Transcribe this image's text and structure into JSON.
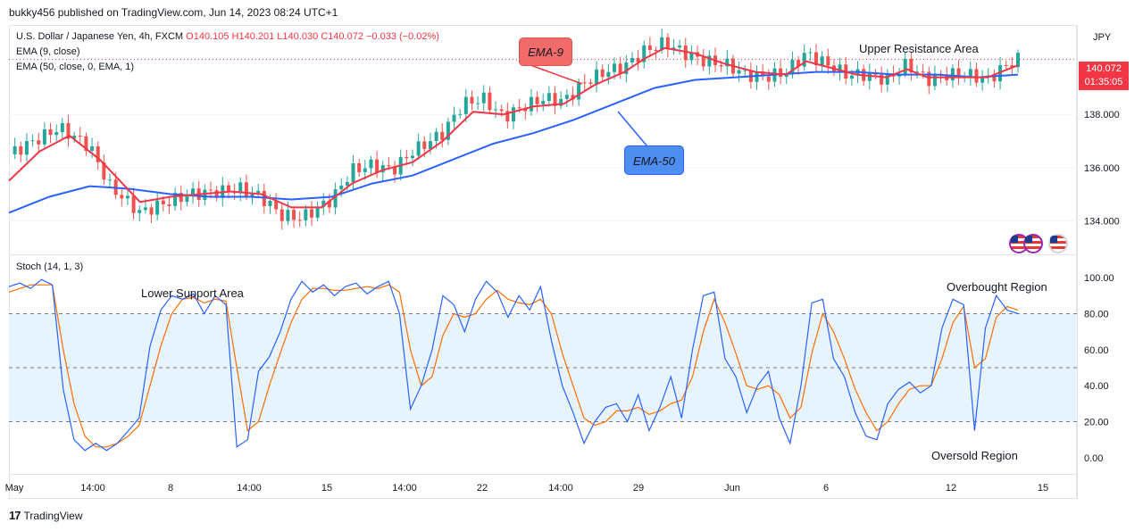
{
  "publish_line": "bukky456 published on TradingView.com, Jun 14, 2023 08:24 UTC+1",
  "footer": {
    "brand": "TradingView"
  },
  "legend": {
    "symbol": "U.S. Dollar / Japanese Yen, 4h, FXCM",
    "ohlc": "O140.105 H140.201 L140.030 C140.072 −0.033 (−0.02%)",
    "ema9": "EMA (9, close)",
    "ema50": "EMA (50, close, 0, EMA, 1)",
    "stoch": "Stoch (14, 1, 3)"
  },
  "price_tag": {
    "price": "140.072",
    "countdown": "01:35:05"
  },
  "currency": "JPY",
  "annotations": {
    "ema9_label": "EMA-9",
    "ema50_label": "EMA-50",
    "upper_resistance": "Upper Resistance Area",
    "lower_support": "Lower Support Area",
    "overbought": "Overbought Region",
    "oversold": "Oversold Region"
  },
  "colors": {
    "up": "#26a69a",
    "down": "#ef5350",
    "ema9": "#f23645",
    "ema50": "#2962ff",
    "k_line": "#2962ff",
    "d_line": "#ff6d00",
    "band_fill": "#e8f4fd",
    "ema9_callout": "#f26b6b",
    "ema50_callout": "#4d8ef0"
  },
  "chart_data": [
    {
      "type": "candlestick",
      "title": "U.S. Dollar / Japanese Yen, 4h, FXCM",
      "y_axis": {
        "ticks": [
          "134.000",
          "136.000",
          "138.000"
        ],
        "range": [
          132.8,
          141.3
        ]
      },
      "x_axis": {
        "ticks": [
          "May",
          "14:00",
          "8",
          "14:00",
          "15",
          "14:00",
          "22",
          "14:00",
          "29",
          "Jun",
          "6",
          "12",
          "15"
        ]
      },
      "price_series": [
        [
          0,
          136.5
        ],
        [
          2,
          136.9
        ],
        [
          5,
          137.5
        ],
        [
          8,
          136.8
        ],
        [
          10,
          135.3
        ],
        [
          13,
          134.3
        ],
        [
          15,
          134.6
        ],
        [
          18,
          135.0
        ],
        [
          21,
          135.1
        ],
        [
          23,
          135.2
        ],
        [
          25,
          134.9
        ],
        [
          27,
          134.2
        ],
        [
          29,
          134.1
        ],
        [
          32,
          134.8
        ],
        [
          34,
          135.9
        ],
        [
          36,
          136.1
        ],
        [
          38,
          135.9
        ],
        [
          40,
          136.6
        ],
        [
          43,
          137.3
        ],
        [
          45,
          138.4
        ],
        [
          47,
          138.6
        ],
        [
          49,
          137.9
        ],
        [
          51,
          138.3
        ],
        [
          53,
          138.6
        ],
        [
          55,
          138.5
        ],
        [
          57,
          139.2
        ],
        [
          59,
          139.6
        ],
        [
          61,
          139.8
        ],
        [
          63,
          140.4
        ],
        [
          65,
          140.7
        ],
        [
          67,
          140.3
        ],
        [
          69,
          140.0
        ],
        [
          71,
          139.9
        ],
        [
          73,
          139.5
        ],
        [
          75,
          139.4
        ],
        [
          77,
          139.6
        ],
        [
          79,
          140.3
        ],
        [
          81,
          139.9
        ],
        [
          83,
          139.5
        ],
        [
          85,
          139.5
        ],
        [
          87,
          139.3
        ],
        [
          89,
          139.9
        ],
        [
          91,
          139.3
        ],
        [
          93,
          139.5
        ],
        [
          95,
          139.5
        ],
        [
          97,
          139.3
        ],
        [
          99,
          139.9
        ],
        [
          100,
          140.07
        ]
      ],
      "ema9_series": [
        [
          0,
          135.5
        ],
        [
          3,
          136.6
        ],
        [
          6,
          137.2
        ],
        [
          9,
          136.3
        ],
        [
          11,
          135.5
        ],
        [
          13,
          134.7
        ],
        [
          16,
          134.9
        ],
        [
          19,
          135.0
        ],
        [
          22,
          135.1
        ],
        [
          25,
          135.0
        ],
        [
          28,
          134.5
        ],
        [
          31,
          134.5
        ],
        [
          34,
          135.4
        ],
        [
          37,
          135.9
        ],
        [
          40,
          136.2
        ],
        [
          43,
          137.0
        ],
        [
          46,
          138.1
        ],
        [
          49,
          138.0
        ],
        [
          52,
          138.3
        ],
        [
          55,
          138.4
        ],
        [
          58,
          139.1
        ],
        [
          61,
          139.6
        ],
        [
          63,
          140.1
        ],
        [
          65,
          140.5
        ],
        [
          68,
          140.3
        ],
        [
          71,
          139.9
        ],
        [
          74,
          139.6
        ],
        [
          77,
          139.5
        ],
        [
          79,
          140.0
        ],
        [
          81,
          139.8
        ],
        [
          84,
          139.5
        ],
        [
          87,
          139.4
        ],
        [
          89,
          139.7
        ],
        [
          91,
          139.4
        ],
        [
          94,
          139.4
        ],
        [
          97,
          139.4
        ],
        [
          99,
          139.7
        ],
        [
          100,
          139.85
        ]
      ],
      "ema50_series": [
        [
          0,
          134.3
        ],
        [
          4,
          134.9
        ],
        [
          8,
          135.3
        ],
        [
          12,
          135.2
        ],
        [
          16,
          135.0
        ],
        [
          20,
          134.9
        ],
        [
          24,
          134.9
        ],
        [
          28,
          134.8
        ],
        [
          32,
          134.9
        ],
        [
          36,
          135.4
        ],
        [
          40,
          135.7
        ],
        [
          44,
          136.3
        ],
        [
          48,
          136.9
        ],
        [
          52,
          137.3
        ],
        [
          56,
          137.8
        ],
        [
          60,
          138.4
        ],
        [
          64,
          139.0
        ],
        [
          68,
          139.3
        ],
        [
          72,
          139.4
        ],
        [
          76,
          139.5
        ],
        [
          80,
          139.6
        ],
        [
          84,
          139.6
        ],
        [
          88,
          139.5
        ],
        [
          92,
          139.5
        ],
        [
          96,
          139.4
        ],
        [
          100,
          139.5
        ]
      ]
    },
    {
      "type": "line",
      "title": "Stoch (14, 1, 3)",
      "y_axis": {
        "ticks": [
          "100.00",
          "80.00",
          "60.00",
          "40.00",
          "20.00",
          "0.00"
        ],
        "range": [
          -8,
          108
        ],
        "band": [
          20,
          80
        ]
      },
      "series": [
        {
          "name": "%K",
          "values": [
            [
              0,
              95
            ],
            [
              1,
              97
            ],
            [
              2,
              94
            ],
            [
              3,
              99
            ],
            [
              4,
              96
            ],
            [
              5,
              38
            ],
            [
              6,
              10
            ],
            [
              7,
              4
            ],
            [
              8,
              8
            ],
            [
              9,
              4
            ],
            [
              10,
              8
            ],
            [
              11,
              15
            ],
            [
              12,
              22
            ],
            [
              13,
              62
            ],
            [
              14,
              82
            ],
            [
              15,
              90
            ],
            [
              16,
              88
            ],
            [
              17,
              91
            ],
            [
              18,
              80
            ],
            [
              19,
              90
            ],
            [
              20,
              85
            ],
            [
              21,
              6
            ],
            [
              22,
              10
            ],
            [
              23,
              48
            ],
            [
              24,
              56
            ],
            [
              25,
              70
            ],
            [
              26,
              88
            ],
            [
              27,
              98
            ],
            [
              28,
              92
            ],
            [
              29,
              96
            ],
            [
              30,
              90
            ],
            [
              31,
              95
            ],
            [
              32,
              97
            ],
            [
              33,
              91
            ],
            [
              34,
              95
            ],
            [
              35,
              98
            ],
            [
              36,
              80
            ],
            [
              37,
              27
            ],
            [
              38,
              40
            ],
            [
              39,
              60
            ],
            [
              40,
              90
            ],
            [
              41,
              85
            ],
            [
              42,
              70
            ],
            [
              43,
              88
            ],
            [
              44,
              98
            ],
            [
              45,
              92
            ],
            [
              46,
              78
            ],
            [
              47,
              90
            ],
            [
              48,
              82
            ],
            [
              49,
              95
            ],
            [
              50,
              65
            ],
            [
              51,
              40
            ],
            [
              52,
              25
            ],
            [
              53,
              8
            ],
            [
              54,
              20
            ],
            [
              55,
              28
            ],
            [
              56,
              30
            ],
            [
              57,
              20
            ],
            [
              58,
              35
            ],
            [
              59,
              15
            ],
            [
              60,
              28
            ],
            [
              61,
              45
            ],
            [
              62,
              22
            ],
            [
              63,
              60
            ],
            [
              64,
              90
            ],
            [
              65,
              92
            ],
            [
              66,
              55
            ],
            [
              67,
              45
            ],
            [
              68,
              25
            ],
            [
              69,
              40
            ],
            [
              70,
              48
            ],
            [
              71,
              22
            ],
            [
              72,
              8
            ],
            [
              73,
              40
            ],
            [
              74,
              86
            ],
            [
              75,
              88
            ],
            [
              76,
              55
            ],
            [
              77,
              45
            ],
            [
              78,
              25
            ],
            [
              79,
              12
            ],
            [
              80,
              10
            ],
            [
              81,
              30
            ],
            [
              82,
              38
            ],
            [
              83,
              42
            ],
            [
              84,
              36
            ],
            [
              85,
              40
            ],
            [
              86,
              72
            ],
            [
              87,
              88
            ],
            [
              88,
              85
            ],
            [
              89,
              15
            ],
            [
              90,
              72
            ],
            [
              91,
              90
            ],
            [
              92,
              82
            ],
            [
              93,
              80
            ]
          ]
        },
        {
          "name": "%D",
          "values": [
            [
              0,
              92
            ],
            [
              2,
              96
            ],
            [
              4,
              96
            ],
            [
              5,
              60
            ],
            [
              6,
              30
            ],
            [
              7,
              12
            ],
            [
              8,
              6
            ],
            [
              9,
              6
            ],
            [
              10,
              8
            ],
            [
              11,
              12
            ],
            [
              12,
              18
            ],
            [
              13,
              40
            ],
            [
              14,
              62
            ],
            [
              15,
              80
            ],
            [
              16,
              88
            ],
            [
              17,
              89
            ],
            [
              18,
              86
            ],
            [
              19,
              88
            ],
            [
              20,
              87
            ],
            [
              21,
              50
            ],
            [
              22,
              15
            ],
            [
              23,
              20
            ],
            [
              24,
              40
            ],
            [
              25,
              58
            ],
            [
              26,
              75
            ],
            [
              27,
              88
            ],
            [
              28,
              94
            ],
            [
              29,
              94
            ],
            [
              30,
              93
            ],
            [
              31,
              93
            ],
            [
              32,
              94
            ],
            [
              33,
              95
            ],
            [
              34,
              94
            ],
            [
              35,
              96
            ],
            [
              36,
              92
            ],
            [
              37,
              60
            ],
            [
              38,
              40
            ],
            [
              39,
              45
            ],
            [
              40,
              68
            ],
            [
              41,
              80
            ],
            [
              42,
              78
            ],
            [
              43,
              80
            ],
            [
              44,
              88
            ],
            [
              45,
              93
            ],
            [
              46,
              88
            ],
            [
              47,
              86
            ],
            [
              48,
              85
            ],
            [
              49,
              88
            ],
            [
              50,
              80
            ],
            [
              51,
              58
            ],
            [
              52,
              40
            ],
            [
              53,
              22
            ],
            [
              54,
              18
            ],
            [
              55,
              20
            ],
            [
              56,
              26
            ],
            [
              57,
              26
            ],
            [
              58,
              28
            ],
            [
              59,
              24
            ],
            [
              60,
              26
            ],
            [
              61,
              30
            ],
            [
              62,
              32
            ],
            [
              63,
              45
            ],
            [
              64,
              70
            ],
            [
              65,
              88
            ],
            [
              66,
              75
            ],
            [
              67,
              58
            ],
            [
              68,
              40
            ],
            [
              69,
              38
            ],
            [
              70,
              40
            ],
            [
              71,
              35
            ],
            [
              72,
              22
            ],
            [
              73,
              28
            ],
            [
              74,
              58
            ],
            [
              75,
              80
            ],
            [
              76,
              70
            ],
            [
              77,
              55
            ],
            [
              78,
              38
            ],
            [
              79,
              25
            ],
            [
              80,
              15
            ],
            [
              81,
              20
            ],
            [
              82,
              30
            ],
            [
              83,
              38
            ],
            [
              84,
              40
            ],
            [
              85,
              40
            ],
            [
              86,
              55
            ],
            [
              87,
              75
            ],
            [
              88,
              84
            ],
            [
              89,
              50
            ],
            [
              90,
              55
            ],
            [
              91,
              78
            ],
            [
              92,
              84
            ],
            [
              93,
              82
            ]
          ]
        }
      ]
    }
  ]
}
